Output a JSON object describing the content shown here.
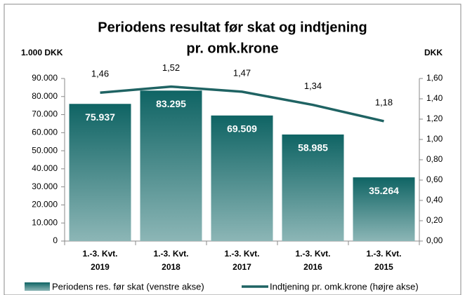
{
  "chart_data": {
    "type": "bar_line",
    "title": [
      "Periodens resultat før skat og indtjening",
      "pr. omk.krone"
    ],
    "y_label": "1.000 DKK",
    "y2_label": "DKK",
    "categories": [
      "1.-3. Kvt. 2019",
      "1.-3. Kvt. 2018",
      "1.-3. Kvt. 2017",
      "1.-3. Kvt. 2016",
      "1.-3. Kvt. 2015"
    ],
    "series": [
      {
        "name": "Periodens res. før skat (venstre akse)",
        "type": "bar",
        "color": "#0f6464",
        "color2": "#8cb6b6",
        "values": [
          75937,
          83295,
          69509,
          58985,
          35264
        ],
        "value_labels": [
          "75.937",
          "83.295",
          "69.509",
          "58.985",
          "35.264"
        ]
      },
      {
        "name": "Indtjening pr. omk.krone (højre akse)",
        "type": "line",
        "axis": "y2",
        "color": "#1f6363",
        "values": [
          1.46,
          1.52,
          1.47,
          1.34,
          1.18
        ],
        "value_labels": [
          "1,46",
          "1,52",
          "1,47",
          "1,34",
          "1,18"
        ]
      }
    ],
    "ylim": [
      0,
      90000
    ],
    "yticks": [
      {
        "value": 0,
        "label": "0"
      },
      {
        "value": 10000,
        "label": "10.000"
      },
      {
        "value": 20000,
        "label": "20.000"
      },
      {
        "value": 30000,
        "label": "30.000"
      },
      {
        "value": 40000,
        "label": "40.000"
      },
      {
        "value": 50000,
        "label": "50.000"
      },
      {
        "value": 60000,
        "label": "60.000"
      },
      {
        "value": 70000,
        "label": "70.000"
      },
      {
        "value": 80000,
        "label": "80.000"
      },
      {
        "value": 90000,
        "label": "90.000"
      }
    ],
    "y2lim": [
      0,
      1.6
    ],
    "y2ticks": [
      {
        "value": 0,
        "label": "0,00"
      },
      {
        "value": 0.2,
        "label": "0,20"
      },
      {
        "value": 0.4,
        "label": "0,40"
      },
      {
        "value": 0.6,
        "label": "0,60"
      },
      {
        "value": 0.8,
        "label": "0,80"
      },
      {
        "value": 1.0,
        "label": "1,00"
      },
      {
        "value": 1.2,
        "label": "1,20"
      },
      {
        "value": 1.4,
        "label": "1,40"
      },
      {
        "value": 1.6,
        "label": "1,60"
      }
    ],
    "legend": "bottom"
  }
}
